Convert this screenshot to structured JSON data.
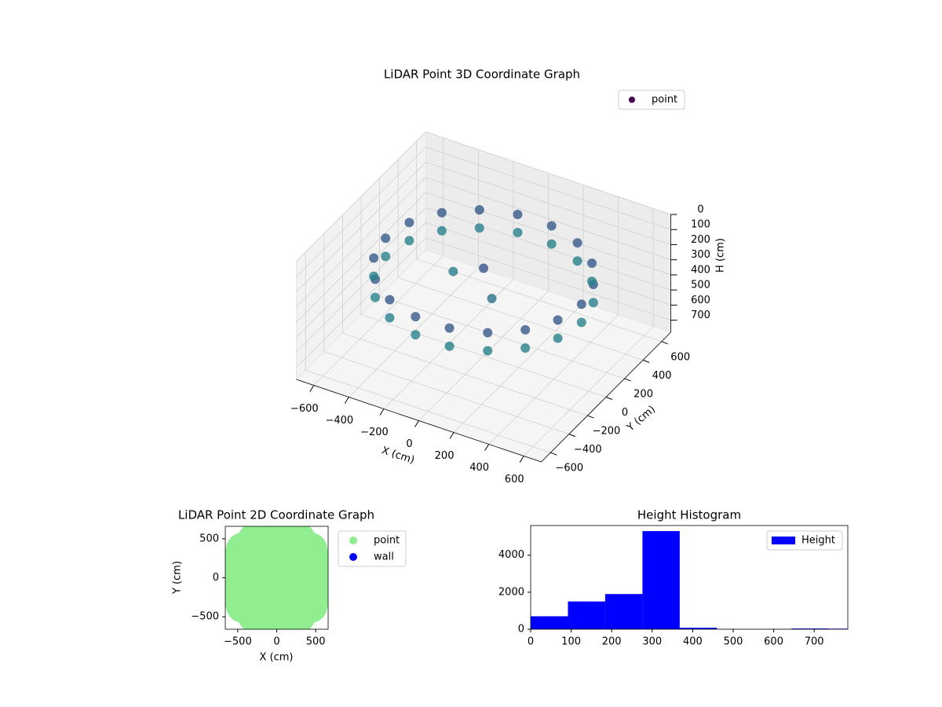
{
  "chart_data": [
    {
      "type": "scatter3d",
      "title": "LiDAR Point 3D Coordinate Graph",
      "xlabel": "X (cm)",
      "ylabel": "Y (cm)",
      "zlabel": "H (cm)",
      "xlim": [
        -700,
        700
      ],
      "ylim": [
        -700,
        700
      ],
      "zlim": [
        0,
        780
      ],
      "z_inverted": true,
      "xticks": [
        {
          "value": -600,
          "label": "−600"
        },
        {
          "value": -400,
          "label": "−400"
        },
        {
          "value": -200,
          "label": "−200"
        },
        0,
        200,
        400,
        600
      ],
      "yticks": [
        {
          "value": -600,
          "label": "−600"
        },
        {
          "value": -400,
          "label": "−400"
        },
        {
          "value": -200,
          "label": "−200"
        },
        0,
        200,
        400,
        600
      ],
      "zticks": [
        0,
        100,
        200,
        300,
        400,
        500,
        600,
        700
      ],
      "legend": "upper right",
      "colormap": "viridis",
      "grid": true,
      "series": [
        {
          "name": "point",
          "color": "#440154",
          "x": [
            560,
            526,
            429,
            280,
            97,
            -97,
            -280,
            -429,
            -526,
            -560,
            -526,
            -429,
            -280,
            -97,
            97,
            280,
            429,
            526,
            560,
            526,
            429,
            280,
            97,
            -97,
            -280,
            -429,
            -526,
            -560,
            -526,
            -429,
            -280,
            -97,
            97,
            280,
            429,
            526,
            100,
            -200,
            0
          ],
          "y": [
            0,
            192,
            360,
            485,
            552,
            552,
            485,
            360,
            192,
            0,
            -192,
            -360,
            -485,
            -552,
            -552,
            -485,
            -360,
            -192,
            0,
            192,
            360,
            485,
            552,
            552,
            485,
            360,
            192,
            0,
            -192,
            -360,
            -485,
            -552,
            -552,
            -485,
            -360,
            -192,
            -100,
            50,
            0
          ],
          "z": [
            220,
            220,
            220,
            220,
            220,
            220,
            220,
            220,
            220,
            220,
            220,
            220,
            220,
            220,
            220,
            220,
            220,
            220,
            340,
            340,
            340,
            340,
            340,
            340,
            340,
            340,
            340,
            340,
            340,
            340,
            340,
            340,
            340,
            340,
            340,
            340,
            300,
            330,
            200
          ]
        }
      ]
    },
    {
      "type": "scatter",
      "title": "LiDAR Point 2D Coordinate Graph",
      "xlabel": "X (cm)",
      "ylabel": "Y (cm)",
      "xlim": [
        -660,
        660
      ],
      "ylim": [
        -660,
        660
      ],
      "xticks": [
        {
          "value": -500,
          "label": "−500"
        },
        0,
        500
      ],
      "yticks": [
        {
          "value": -500,
          "label": "−500"
        },
        0,
        500
      ],
      "legend": "outside upper right",
      "series": [
        {
          "name": "wall",
          "color": "#0000ff",
          "x": [
            400,
            -400
          ],
          "y": [
            0,
            0
          ]
        },
        {
          "name": "point",
          "color": "#90ee90",
          "x": [
            560,
            526,
            429,
            280,
            97,
            -97,
            -280,
            -429,
            -526,
            -560,
            -526,
            -429,
            -280,
            -97,
            97,
            280,
            429,
            526,
            300,
            150,
            -150,
            -300,
            -150,
            150,
            0
          ],
          "y": [
            0,
            192,
            360,
            485,
            552,
            552,
            485,
            360,
            192,
            0,
            -192,
            -360,
            -485,
            -552,
            -552,
            -485,
            -360,
            -192,
            0,
            260,
            260,
            0,
            -260,
            -260,
            0
          ]
        }
      ]
    },
    {
      "type": "histogram",
      "title": "Height Histogram",
      "name": "Height",
      "color": "#0000ff",
      "legend": "upper right",
      "bins": [
        0,
        92,
        184,
        276,
        368,
        460,
        552,
        644,
        736,
        828
      ],
      "counts": [
        700,
        1500,
        1900,
        5300,
        80,
        10,
        10,
        40,
        30
      ],
      "xlim": [
        0,
        783
      ],
      "ylim": [
        0,
        5600
      ],
      "xticks": [
        0,
        100,
        200,
        300,
        400,
        500,
        600,
        700
      ],
      "yticks": [
        0,
        2000,
        4000
      ]
    }
  ]
}
